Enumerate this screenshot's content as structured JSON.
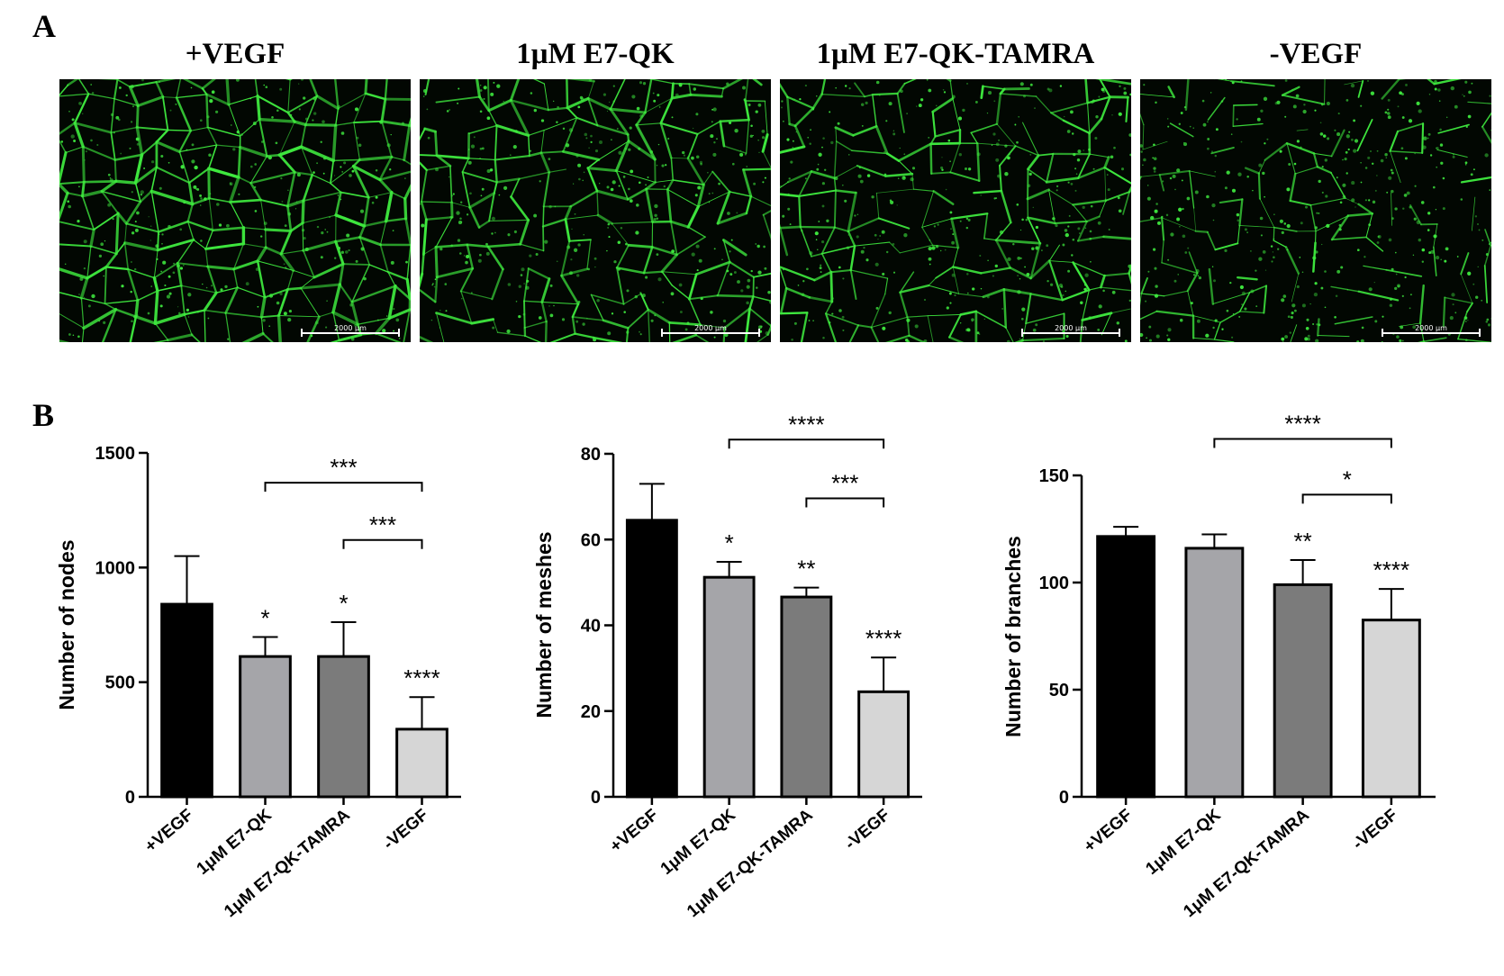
{
  "panel_a": {
    "label": "A",
    "images": [
      {
        "title": "+VEGF",
        "scale_label": "2000 μm",
        "density": 1.0
      },
      {
        "title": "1μM E7-QK",
        "scale_label": "2000 μm",
        "density": 0.8
      },
      {
        "title": "1μM E7-QK-TAMRA",
        "scale_label": "2000 μm",
        "density": 0.7
      },
      {
        "title": "-VEGF",
        "scale_label": "2000 μm",
        "density": 0.45
      }
    ],
    "colors": {
      "background": "#020702",
      "network": "#3ee83e"
    }
  },
  "panel_b": {
    "label": "B"
  },
  "chart_data": [
    {
      "type": "bar",
      "title": "",
      "xlabel": "",
      "ylabel": "Number of nodes",
      "ylim": [
        0,
        1500
      ],
      "yticks": [
        0,
        500,
        1000,
        1500
      ],
      "categories": [
        "+VEGF",
        "1μM E7-QK",
        "1μM E7-QK-TAMRA",
        "-VEGF"
      ],
      "values": [
        840,
        612,
        612,
        295
      ],
      "errors": [
        210,
        85,
        150,
        140
      ],
      "bar_colors": [
        "#000000",
        "#a5a5a9",
        "#7b7b7b",
        "#d6d6d6"
      ],
      "significance": [
        "",
        "*",
        "*",
        "****"
      ],
      "comparisons": [
        {
          "from": 1,
          "to": 3,
          "label": "***",
          "level": 1370
        },
        {
          "from": 2,
          "to": 3,
          "label": "***",
          "level": 1120
        }
      ]
    },
    {
      "type": "bar",
      "title": "",
      "xlabel": "",
      "ylabel": "Number of meshes",
      "ylim": [
        0,
        80
      ],
      "yticks": [
        0,
        20,
        40,
        60,
        80
      ],
      "categories": [
        "+VEGF",
        "1μM E7-QK",
        "1μM E7-QK-TAMRA",
        "-VEGF"
      ],
      "values": [
        64.5,
        51.2,
        46.6,
        24.5
      ],
      "errors": [
        8.5,
        3.6,
        2.2,
        8.0
      ],
      "bar_colors": [
        "#000000",
        "#a5a5a9",
        "#7b7b7b",
        "#d6d6d6"
      ],
      "significance": [
        "",
        "*",
        "**",
        "****"
      ],
      "comparisons": [
        {
          "from": 1,
          "to": 3,
          "label": "****",
          "level": 83.3
        },
        {
          "from": 2,
          "to": 3,
          "label": "***",
          "level": 69.6
        }
      ]
    },
    {
      "type": "bar",
      "title": "",
      "xlabel": "",
      "ylabel": "Number of branches",
      "ylim": [
        0,
        150
      ],
      "yticks": [
        0,
        50,
        100,
        150
      ],
      "categories": [
        "+VEGF",
        "1μM E7-QK",
        "1μM E7-QK-TAMRA",
        "-VEGF"
      ],
      "values": [
        121.5,
        116,
        99,
        82.5
      ],
      "errors": [
        4.5,
        6.5,
        11.5,
        14.5
      ],
      "bar_colors": [
        "#000000",
        "#a5a5a9",
        "#7b7b7b",
        "#d6d6d6"
      ],
      "significance": [
        "",
        "",
        "**",
        "****"
      ],
      "comparisons": [
        {
          "from": 1,
          "to": 3,
          "label": "****",
          "level": 167
        },
        {
          "from": 2,
          "to": 3,
          "label": "*",
          "level": 141
        }
      ]
    }
  ]
}
